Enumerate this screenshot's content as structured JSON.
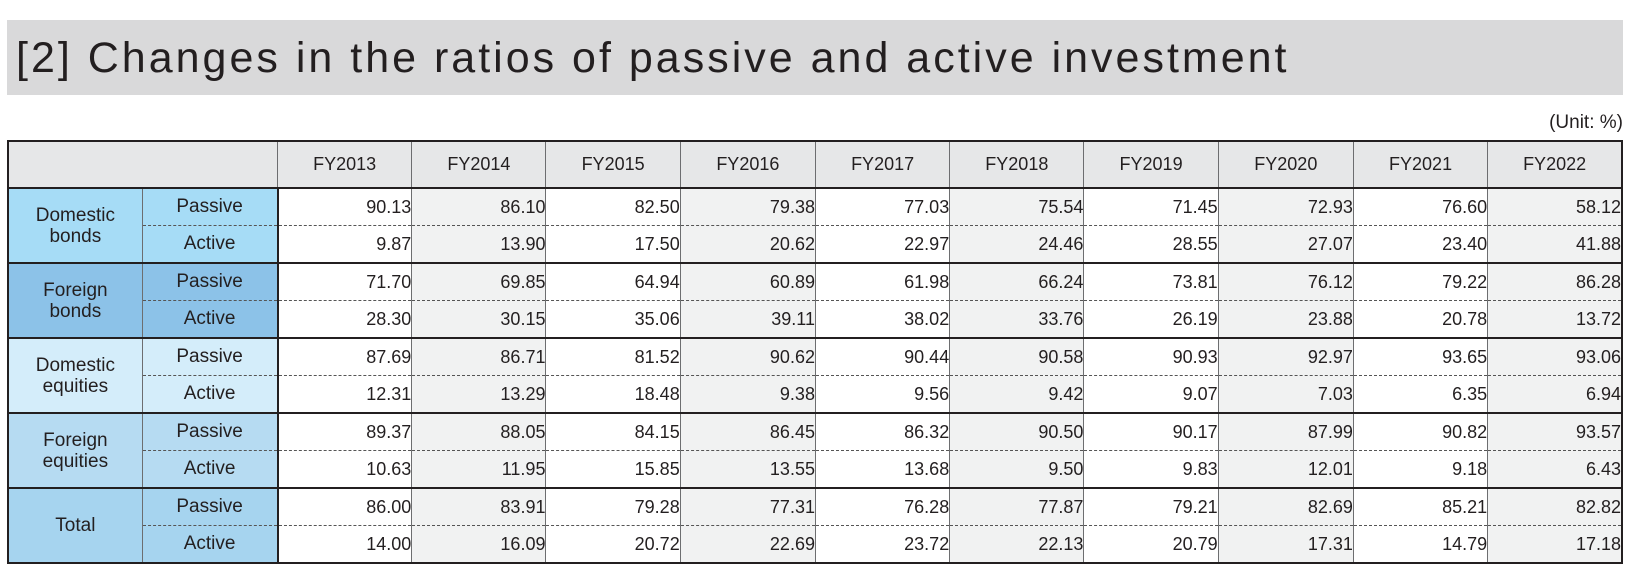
{
  "title": "[2] Changes in the ratios of passive and active investment",
  "unit": "(Unit: %)",
  "years": [
    "FY2013",
    "FY2014",
    "FY2015",
    "FY2016",
    "FY2017",
    "FY2018",
    "FY2019",
    "FY2020",
    "FY2021",
    "FY2022"
  ],
  "labels": {
    "passive": "Passive",
    "active": "Active"
  },
  "groups": [
    {
      "name_line1": "Domestic",
      "name_line2": "bonds",
      "passive": [
        "90.13",
        "86.10",
        "82.50",
        "79.38",
        "77.03",
        "75.54",
        "71.45",
        "72.93",
        "76.60",
        "58.12"
      ],
      "active": [
        "9.87",
        "13.90",
        "17.50",
        "20.62",
        "22.97",
        "24.46",
        "28.55",
        "27.07",
        "23.40",
        "41.88"
      ]
    },
    {
      "name_line1": "Foreign",
      "name_line2": "bonds",
      "passive": [
        "71.70",
        "69.85",
        "64.94",
        "60.89",
        "61.98",
        "66.24",
        "73.81",
        "76.12",
        "79.22",
        "86.28"
      ],
      "active": [
        "28.30",
        "30.15",
        "35.06",
        "39.11",
        "38.02",
        "33.76",
        "26.19",
        "23.88",
        "20.78",
        "13.72"
      ]
    },
    {
      "name_line1": "Domestic",
      "name_line2": "equities",
      "passive": [
        "87.69",
        "86.71",
        "81.52",
        "90.62",
        "90.44",
        "90.58",
        "90.93",
        "92.97",
        "93.65",
        "93.06"
      ],
      "active": [
        "12.31",
        "13.29",
        "18.48",
        "9.38",
        "9.56",
        "9.42",
        "9.07",
        "7.03",
        "6.35",
        "6.94"
      ]
    },
    {
      "name_line1": "Foreign",
      "name_line2": "equities",
      "passive": [
        "89.37",
        "88.05",
        "84.15",
        "86.45",
        "86.32",
        "90.50",
        "90.17",
        "87.99",
        "90.82",
        "93.57"
      ],
      "active": [
        "10.63",
        "11.95",
        "15.85",
        "13.55",
        "13.68",
        "9.50",
        "9.83",
        "12.01",
        "9.18",
        "6.43"
      ]
    },
    {
      "name_line1": "Total",
      "name_line2": "",
      "passive": [
        "86.00",
        "83.91",
        "79.28",
        "77.31",
        "76.28",
        "77.87",
        "79.21",
        "82.69",
        "85.21",
        "82.82"
      ],
      "active": [
        "14.00",
        "16.09",
        "20.72",
        "22.69",
        "23.72",
        "22.13",
        "20.79",
        "17.31",
        "14.79",
        "17.18"
      ]
    }
  ],
  "colors": {
    "title_bg": "#d9d9da",
    "header_bg": "#e6e7e8",
    "shade_col": "#f1f2f2",
    "domestic_bonds": "#a6dcf6",
    "foreign_bonds": "#8cc2e8",
    "domestic_equities": "#d4edfa",
    "foreign_equities": "#b6dbf2",
    "total": "#a6d4ef"
  }
}
